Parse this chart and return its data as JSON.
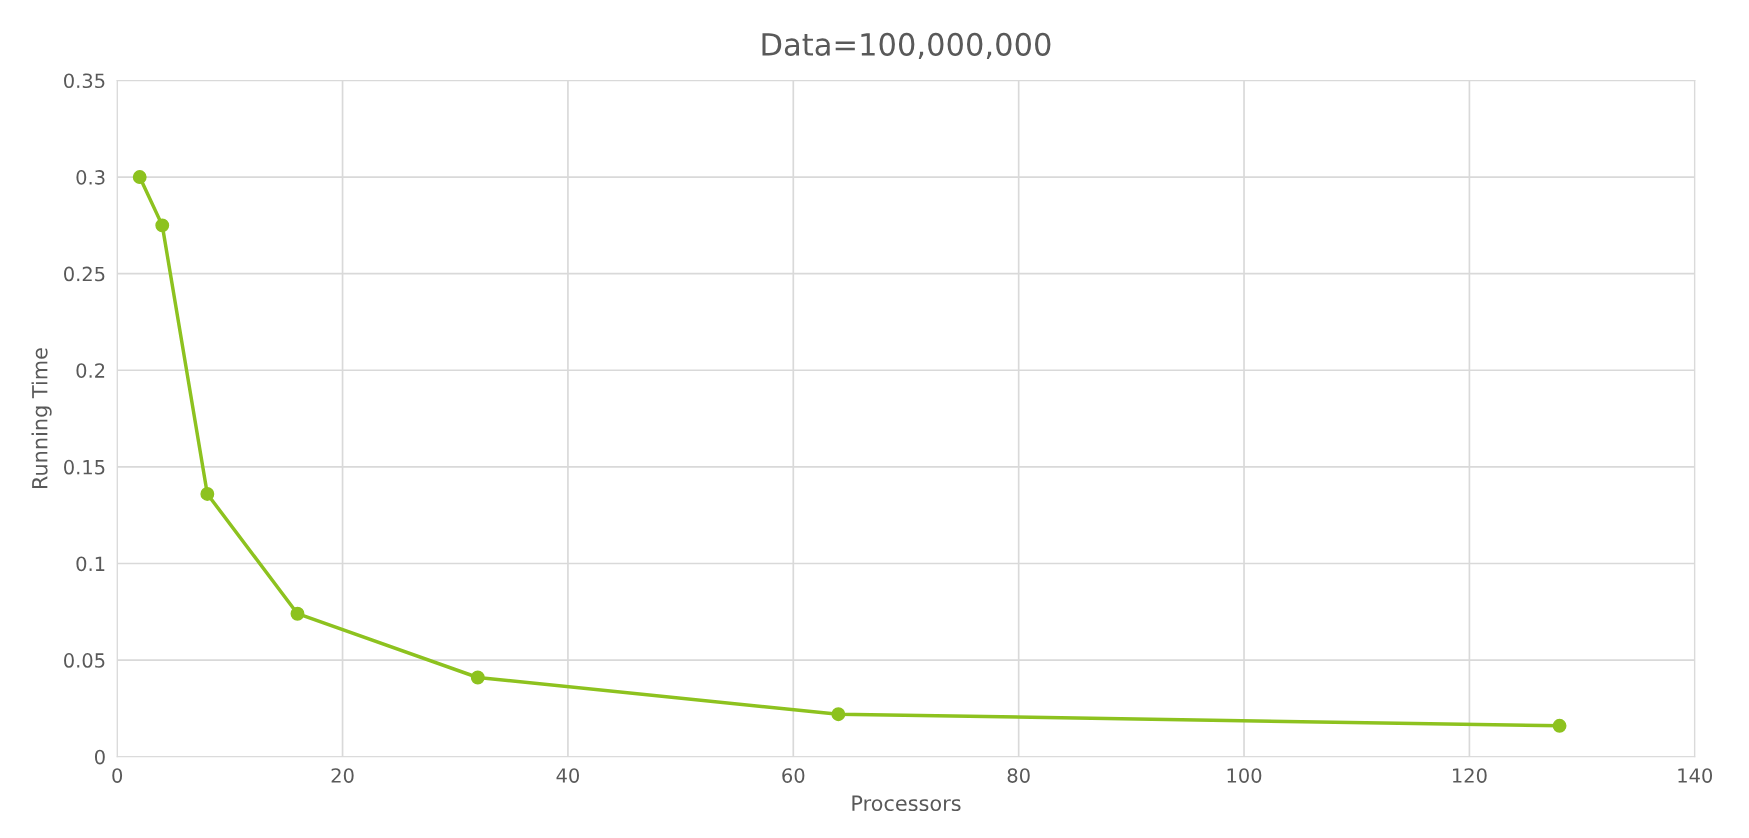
{
  "chart_data": {
    "type": "line",
    "title": "Data=100,000,000",
    "xlabel": "Processors",
    "ylabel": "Running Time",
    "x": [
      2,
      4,
      8,
      16,
      32,
      64,
      128
    ],
    "series": [
      {
        "color": "#8dc21f",
        "values": [
          0.3,
          0.275,
          0.136,
          0.074,
          0.041,
          0.022,
          0.016
        ]
      }
    ],
    "xlim": [
      0,
      140
    ],
    "xticks": [
      0,
      20,
      40,
      60,
      80,
      100,
      120,
      140
    ],
    "ylim": [
      0,
      0.35
    ],
    "yticks": [
      {
        "value": 0,
        "label": "0"
      },
      0.05,
      0.1,
      0.15,
      0.2,
      0.25,
      0.3,
      0.35
    ],
    "grid": true,
    "marker": "circle",
    "line_style": "solid"
  }
}
